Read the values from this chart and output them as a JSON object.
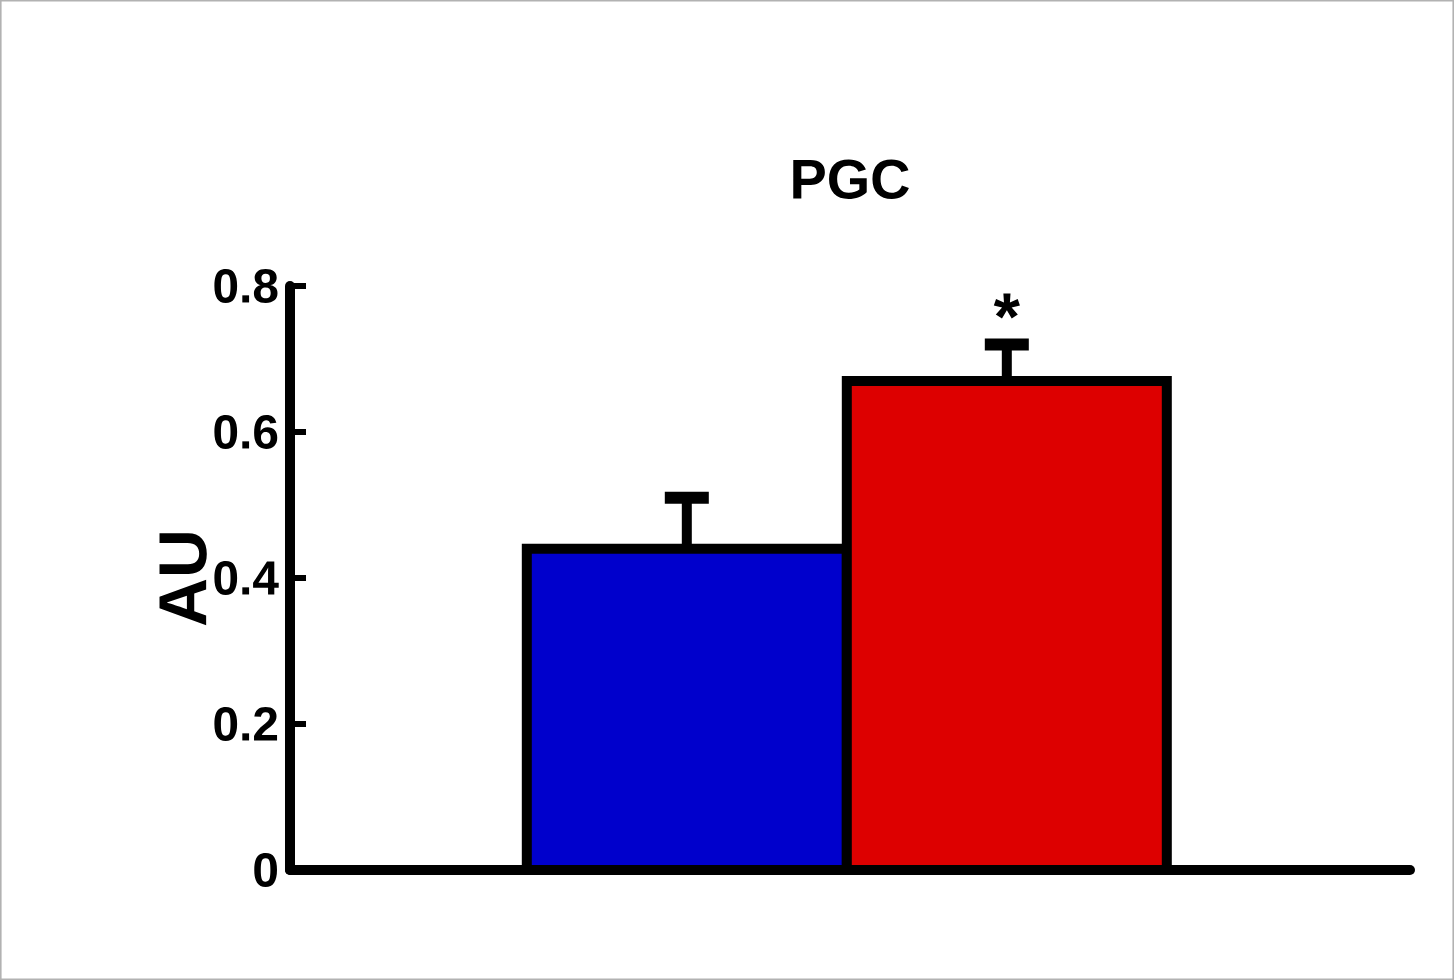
{
  "chart_data": {
    "type": "bar",
    "title": "PGC",
    "ylabel": "AU",
    "categories": [
      null,
      null
    ],
    "values": [
      0.44,
      0.67
    ],
    "colors": [
      "#0000cc",
      "#dd0000"
    ],
    "errors": [
      [
        0.44,
        0.51
      ],
      [
        0.67,
        0.72
      ]
    ],
    "ylim": [
      0,
      0.8
    ],
    "yticks": [
      0,
      0.2,
      0.4,
      0.6,
      0.8
    ],
    "annotations": [
      "*"
    ]
  }
}
